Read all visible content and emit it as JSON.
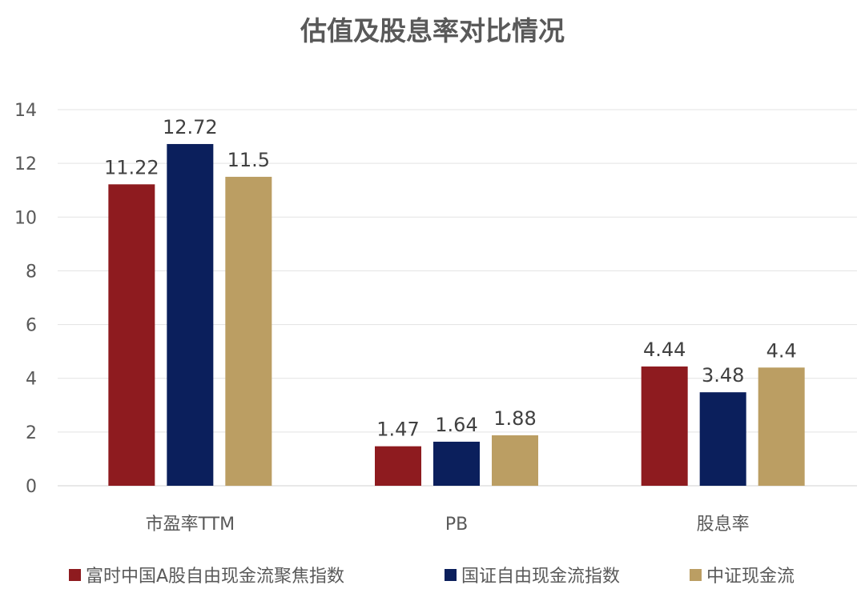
{
  "chart_data": {
    "type": "bar",
    "title": "估值及股息率对比情况",
    "categories": [
      "市盈率TTM",
      "PB",
      "股息率"
    ],
    "series": [
      {
        "name": "富时中国A股自由现金流聚焦指数",
        "values": [
          11.22,
          1.47,
          4.44
        ],
        "color": "#8E1B1F",
        "labels": [
          "11.22",
          "1.47",
          "4.44"
        ]
      },
      {
        "name": "国证自由现金流指数",
        "values": [
          12.72,
          1.64,
          3.48
        ],
        "color": "#0B1F5C",
        "labels": [
          "12.72",
          "1.64",
          "3.48"
        ]
      },
      {
        "name": "中证现金流",
        "values": [
          11.5,
          1.88,
          4.4
        ],
        "color": "#BB9E63",
        "labels": [
          "11.5",
          "1.88",
          "4.4"
        ]
      }
    ],
    "ylim": [
      0,
      14
    ],
    "yticks": [
      "0",
      "2",
      "4",
      "6",
      "8",
      "10",
      "12",
      "14"
    ],
    "xlabel": "",
    "ylabel": "",
    "grid": true,
    "legend": "bottom"
  }
}
